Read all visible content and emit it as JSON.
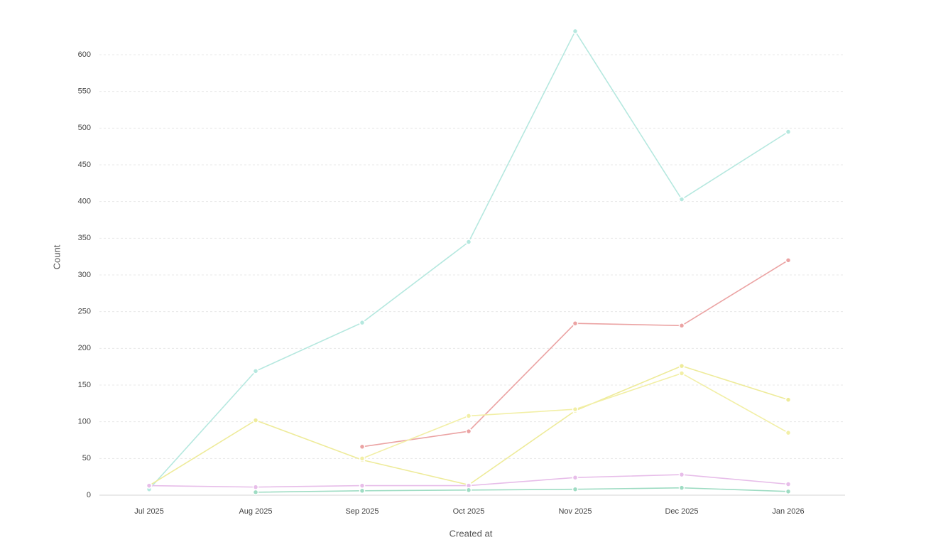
{
  "chart_data": {
    "type": "line",
    "x_label": "Created at",
    "y_label": "Count",
    "categories": [
      "Jul 2025",
      "Aug 2025",
      "Sep 2025",
      "Oct 2025",
      "Nov 2025",
      "Dec 2025",
      "Jan 2026"
    ],
    "series": [
      {
        "color": "#b5e8df",
        "values": [
          8,
          169,
          235,
          345,
          632,
          403,
          495
        ]
      },
      {
        "color": "#eba3a3",
        "values": [
          null,
          null,
          66,
          87,
          234,
          231,
          320
        ]
      },
      {
        "color": "#eeeb9a",
        "values": [
          13,
          102,
          48,
          14,
          115,
          176,
          130
        ]
      },
      {
        "color": "#f2efa6",
        "values": [
          null,
          null,
          50,
          108,
          117,
          166,
          85
        ]
      },
      {
        "color": "#e7bde9",
        "values": [
          13,
          11,
          13,
          13,
          24,
          28,
          15
        ]
      },
      {
        "color": "#9edcc3",
        "values": [
          null,
          4,
          6,
          7,
          8,
          10,
          5
        ]
      }
    ],
    "ylim": [
      0,
      650
    ],
    "yticks": [
      0,
      50,
      100,
      150,
      200,
      250,
      300,
      350,
      400,
      450,
      500,
      550,
      600
    ],
    "grid": true
  }
}
